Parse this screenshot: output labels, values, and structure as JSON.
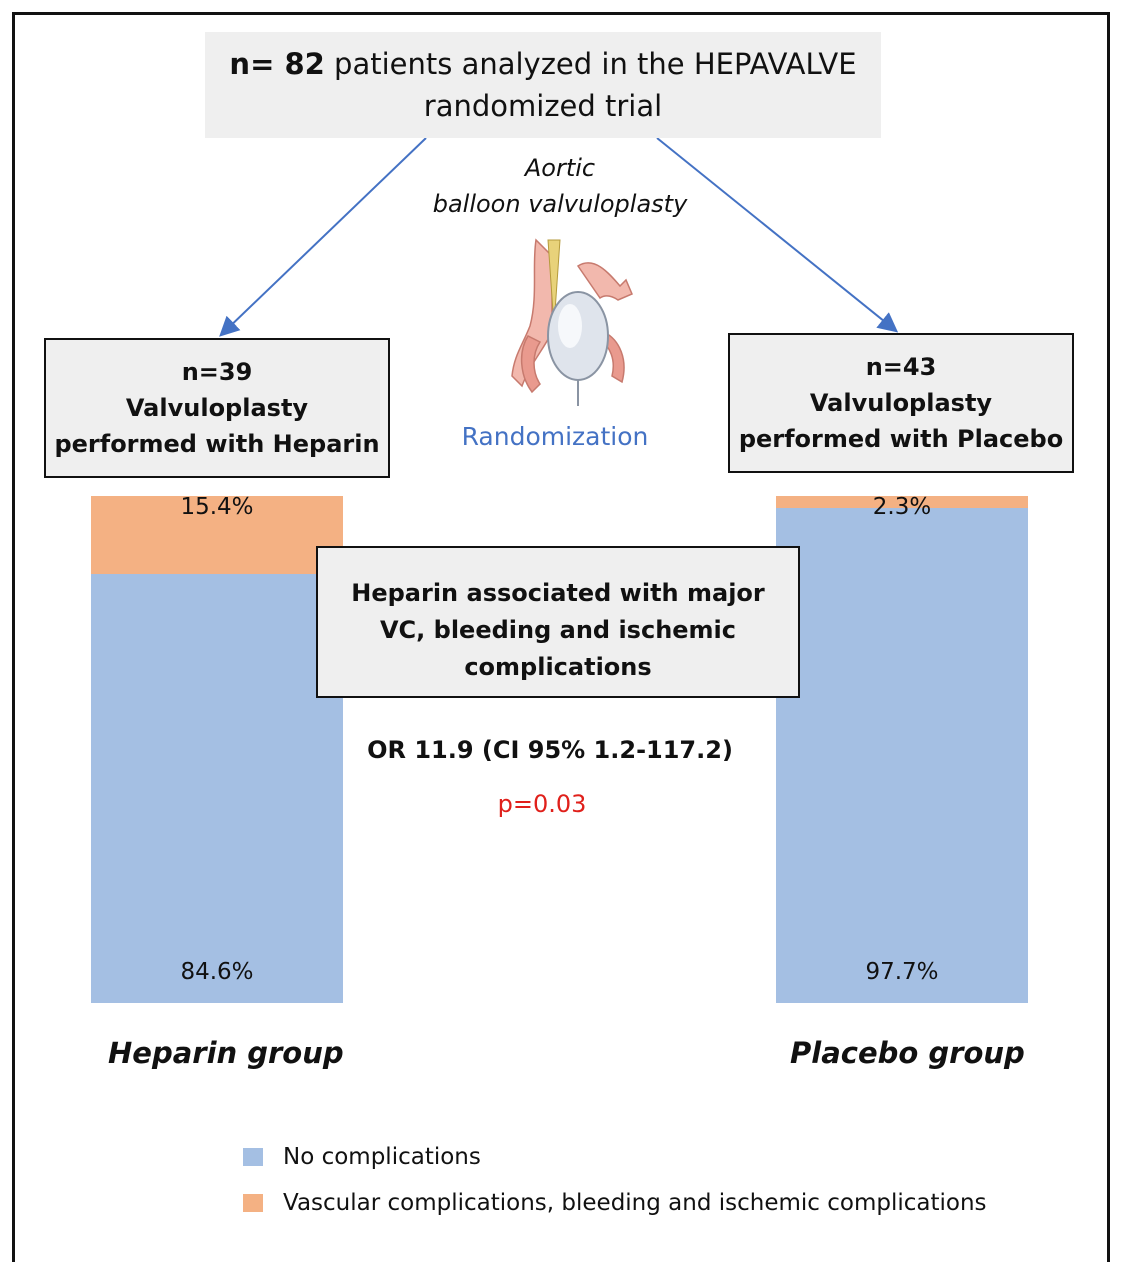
{
  "header": {
    "n_bold": "n= 82",
    "text_line1": " patients analyzed in the HEPAVALVE",
    "text_line2": "randomized trial"
  },
  "procedure": {
    "line1": "Aortic",
    "line2": "balloon valvuloplasty"
  },
  "randomization_label": "Randomization",
  "heparin_box": {
    "line1": "n=39",
    "line2": "Valvuloplasty",
    "line3": "performed with Heparin"
  },
  "placebo_box": {
    "line1": "n=43",
    "line2": "Valvuloplasty",
    "line3": "performed with Placebo"
  },
  "result_box": {
    "line1": "Heparin associated with major",
    "line2": "VC, bleeding and ischemic",
    "line3": "complications"
  },
  "odds_ratio": "OR 11.9 (CI 95% 1.2-117.2)",
  "p_value": "p=0.03",
  "colors": {
    "no_complications": "#a4bfe3",
    "complications": "#f4b183",
    "randomization": "#4472c4",
    "p_value": "#e0201b",
    "arrow": "#4472c4"
  },
  "chart_data": {
    "type": "bar",
    "stacked": true,
    "categories": [
      "Heparin group",
      "Placebo group"
    ],
    "series": [
      {
        "name": "No complications",
        "values": [
          84.6,
          97.7
        ],
        "labels": [
          "84.6%",
          "97.7%"
        ]
      },
      {
        "name": "Vascular complications, bleeding and ischemic complications",
        "values": [
          15.4,
          2.3
        ],
        "labels": [
          "15.4%",
          "2.3%"
        ]
      }
    ],
    "legend_placement": "bottom"
  }
}
